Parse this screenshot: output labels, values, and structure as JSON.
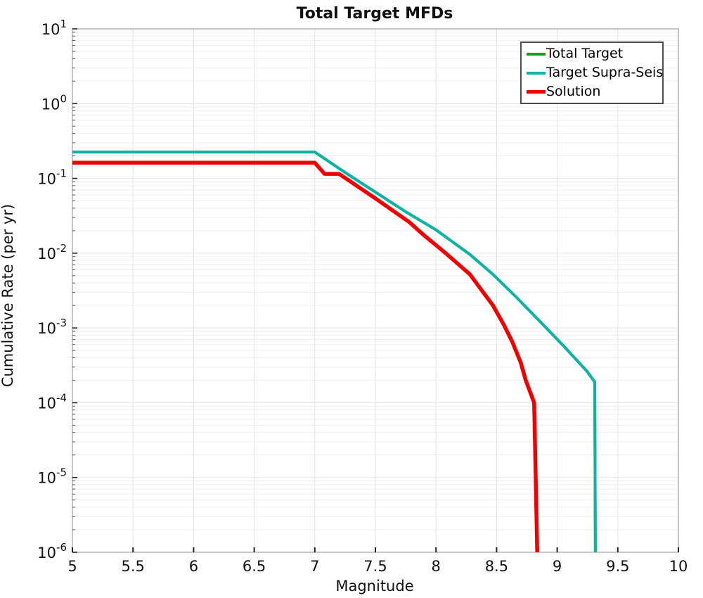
{
  "title": "Total Target MFDs",
  "axes": {
    "x": {
      "label": "Magnitude",
      "min": 5,
      "max": 10,
      "ticks": [
        {
          "v": 5,
          "label": "5"
        },
        {
          "v": 5.5,
          "label": "5.5"
        },
        {
          "v": 6,
          "label": "6"
        },
        {
          "v": 6.5,
          "label": "6.5"
        },
        {
          "v": 7,
          "label": "7"
        },
        {
          "v": 7.5,
          "label": "7.5"
        },
        {
          "v": 8,
          "label": "8"
        },
        {
          "v": 8.5,
          "label": "8.5"
        },
        {
          "v": 9,
          "label": "9"
        },
        {
          "v": 9.5,
          "label": "9.5"
        },
        {
          "v": 10,
          "label": "10"
        }
      ]
    },
    "y": {
      "label": "Cumulative Rate (per yr)",
      "scale": "log",
      "tick_base": "10",
      "tick_exponents": [
        1,
        0,
        -1,
        -2,
        -3,
        -4,
        -5,
        -6
      ]
    }
  },
  "colors": {
    "grid_minor": "#ededed",
    "grid_major": "#e3e3e3",
    "plot_border": "#a8a8a8",
    "tick": "#222222",
    "tick_minor": "#555555",
    "legend_border": "#4d4d4d"
  },
  "chart_data": {
    "type": "line",
    "title": "Total Target MFDs",
    "xlabel": "Magnitude",
    "ylabel": "Cumulative Rate (per yr)",
    "x_scale": "linear",
    "y_scale": "log",
    "xlim": [
      5,
      10
    ],
    "ylim": [
      1e-06,
      10
    ],
    "grid": "minor log horizontal lines; vertical lines every 0.5 magnitude",
    "legend_position": "top-right",
    "overlap_note": "Total Target curve is exactly overlain by Target Supra-Seis curve",
    "series": [
      {
        "name": "Total Target",
        "color": "#00aa00",
        "width": 4,
        "points": [
          [
            5.0,
            0.225
          ],
          [
            7.0,
            0.225
          ],
          [
            7.25,
            0.12
          ],
          [
            7.5,
            0.0655
          ],
          [
            7.75,
            0.0358
          ],
          [
            8.0,
            0.0205
          ],
          [
            8.28,
            0.0096
          ],
          [
            8.47,
            0.0052
          ],
          [
            8.66,
            0.0026
          ],
          [
            8.86,
            0.00121
          ],
          [
            9.05,
            0.00058
          ],
          [
            9.24,
            0.00027
          ],
          [
            9.31,
            0.00019
          ],
          [
            9.315,
            1e-06
          ]
        ]
      },
      {
        "name": "Target Supra-Seis",
        "color": "#0db2a8",
        "width": 4,
        "points": [
          [
            5.0,
            0.225
          ],
          [
            7.0,
            0.225
          ],
          [
            7.25,
            0.12
          ],
          [
            7.5,
            0.0655
          ],
          [
            7.75,
            0.0358
          ],
          [
            8.0,
            0.0205
          ],
          [
            8.28,
            0.0096
          ],
          [
            8.47,
            0.0052
          ],
          [
            8.66,
            0.0026
          ],
          [
            8.86,
            0.00121
          ],
          [
            9.05,
            0.00058
          ],
          [
            9.24,
            0.00027
          ],
          [
            9.31,
            0.00019
          ],
          [
            9.315,
            1e-06
          ]
        ]
      },
      {
        "name": "Solution",
        "color": "#f20000",
        "width": 5.5,
        "points": [
          [
            5.0,
            0.162
          ],
          [
            7.0,
            0.162
          ],
          [
            7.08,
            0.115
          ],
          [
            7.2,
            0.115
          ],
          [
            7.35,
            0.079
          ],
          [
            7.5,
            0.054
          ],
          [
            7.78,
            0.026
          ],
          [
            7.89,
            0.018
          ],
          [
            8.08,
            0.01
          ],
          [
            8.28,
            0.0052
          ],
          [
            8.47,
            0.002
          ],
          [
            8.56,
            0.0011
          ],
          [
            8.63,
            0.00065
          ],
          [
            8.7,
            0.00034
          ],
          [
            8.74,
            0.0002
          ],
          [
            8.81,
            0.0001
          ],
          [
            8.835,
            1e-06
          ]
        ]
      }
    ]
  }
}
